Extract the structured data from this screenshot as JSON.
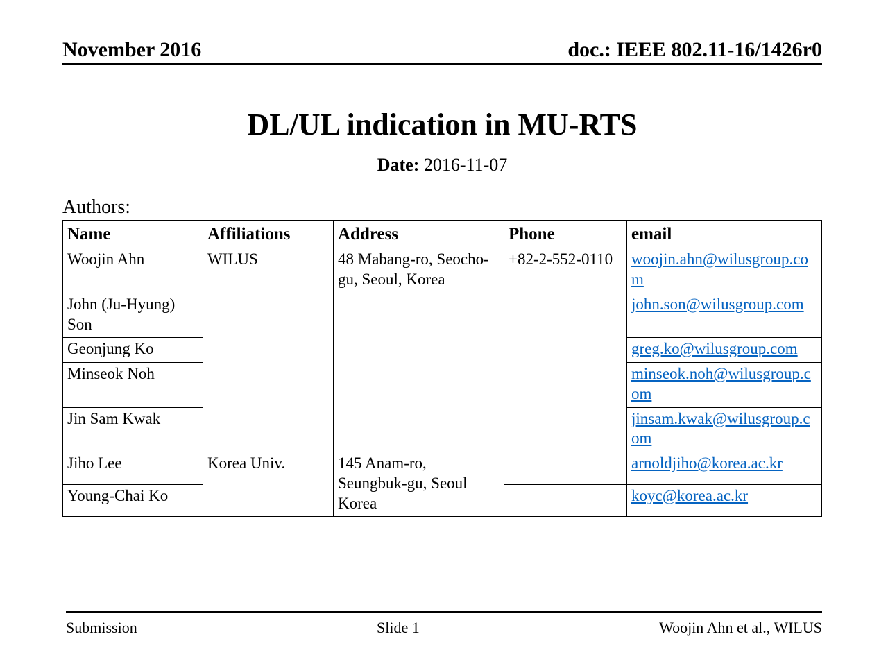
{
  "header": {
    "date_text": "November 2016",
    "doc_id": "doc.: IEEE 802.11-16/1426r0"
  },
  "title": "DL/UL indication in MU-RTS",
  "date": {
    "label": "Date:",
    "value": "2016-11-07"
  },
  "authors_label": "Authors:",
  "table": {
    "columns": [
      "Name",
      "Affiliations",
      "Address",
      "Phone",
      "email"
    ],
    "groups": [
      {
        "affiliation": "WILUS",
        "address": "48 Mabang-ro, Seocho-gu, Seoul, Korea",
        "phone": "+82-2-552-0110",
        "members": [
          {
            "name": "Woojin Ahn",
            "email": "woojin.ahn@wilusgroup.com"
          },
          {
            "name": "John (Ju-Hyung) Son",
            "email": "john.son@wilusgroup.com"
          },
          {
            "name": "Geonjung Ko",
            "email": "greg.ko@wilusgroup.com"
          },
          {
            "name": "Minseok Noh",
            "email": "minseok.noh@wilusgroup.com"
          },
          {
            "name": "Jin Sam Kwak",
            "email": "jinsam.kwak@wilusgroup.com"
          }
        ]
      },
      {
        "affiliation": "Korea Univ.",
        "address": "145 Anam-ro, Seungbuk-gu, Seoul Korea",
        "phone": "",
        "members": [
          {
            "name": "Jiho Lee",
            "email": "arnoldjiho@korea.ac.kr"
          },
          {
            "name": "Young-Chai Ko",
            "email": "koyc@korea.ac.kr"
          }
        ]
      }
    ]
  },
  "footer": {
    "left": "Submission",
    "center": "Slide 1",
    "right": "Woojin Ahn et al., WILUS"
  },
  "style": {
    "link_color": "#0563c1",
    "text_color": "#000000",
    "background_color": "#ffffff"
  }
}
